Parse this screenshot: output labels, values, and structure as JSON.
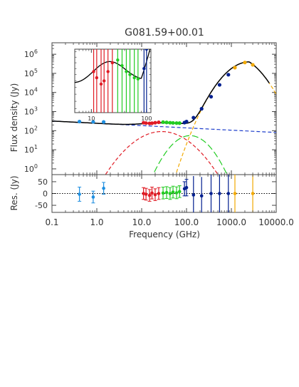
{
  "chart_data": {
    "type": "scatter",
    "title": "G081.59+00.01",
    "xlabel": "Frequency (GHz)",
    "ylabel_top": "Flux density (Jy)",
    "ylabel_bottom": "Res. (Jy)",
    "x_scale": "log",
    "xlim": [
      0.1,
      10000
    ],
    "x_ticks": [
      "0.1",
      "1.0",
      "10.0",
      "100.0",
      "1000.0",
      "10000.0"
    ],
    "top_panel": {
      "y_scale": "log",
      "ylim": [
        0.5,
        4000000
      ],
      "y_ticks": [
        "10^0",
        "10^1",
        "10^2",
        "10^3",
        "10^4",
        "10^5",
        "10^6"
      ],
      "series": [
        {
          "color": "#1f8fe0",
          "x": [
            0.41,
            0.83,
            1.42
          ],
          "y": [
            300,
            290,
            285
          ]
        },
        {
          "color": "#e01b24",
          "x": [
            11,
            12.5,
            15,
            17,
            20,
            24
          ],
          "y": [
            260,
            250,
            240,
            245,
            260,
            275
          ]
        },
        {
          "color": "#22cc22",
          "x": [
            30,
            36,
            43,
            50,
            60,
            70
          ],
          "y": [
            280,
            270,
            260,
            255,
            250,
            248
          ]
        },
        {
          "color": "#001f8f",
          "x": [
            90,
            100,
            143,
            217,
            353,
            545,
            857
          ],
          "y": [
            265,
            300,
            480,
            1400,
            6000,
            25000,
            85000
          ]
        },
        {
          "color": "#f2a900",
          "x": [
            1200,
            2000,
            3000
          ],
          "y": [
            200000,
            370000,
            280000
          ]
        }
      ],
      "model_curves": [
        {
          "component": "total",
          "color": "#000000",
          "style": "solid"
        },
        {
          "component": "free-free",
          "color": "#1f3fcc",
          "style": "dashed"
        },
        {
          "component": "spinning dust (1)",
          "color": "#e01b24",
          "style": "dashed"
        },
        {
          "component": "spinning dust (2)",
          "color": "#22cc22",
          "style": "long-dash"
        },
        {
          "component": "thermal dust",
          "color": "#f2a900",
          "style": "dashed"
        }
      ]
    },
    "inset": {
      "x_ticks": [
        "10",
        "100"
      ],
      "y_scale": "log"
    },
    "bottom_panel": {
      "ylim": [
        -80,
        80
      ],
      "y_ticks": [
        "50",
        "0",
        "-50"
      ],
      "residuals": [
        {
          "color": "#1f8fe0",
          "x": [
            0.41,
            0.83,
            1.42
          ],
          "y": [
            -3,
            -15,
            22
          ],
          "err": [
            30,
            25,
            25
          ]
        },
        {
          "color": "#e01b24",
          "x": [
            11,
            12.5,
            15,
            17,
            20,
            24
          ],
          "y": [
            0,
            -3,
            -8,
            2,
            -5,
            0
          ],
          "err": [
            25,
            25,
            25,
            25,
            25,
            25
          ]
        },
        {
          "color": "#22cc22",
          "x": [
            30,
            36,
            43,
            50,
            60,
            70
          ],
          "y": [
            2,
            4,
            0,
            6,
            3,
            8
          ],
          "err": [
            25,
            25,
            25,
            25,
            25,
            25
          ]
        },
        {
          "color": "#001f8f",
          "x": [
            90,
            100,
            143,
            217,
            353,
            545,
            857
          ],
          "y": [
            20,
            25,
            -6,
            -10,
            0,
            0,
            0
          ],
          "err": [
            30,
            35,
            80,
            80,
            80,
            80,
            80
          ]
        },
        {
          "color": "#f2a900",
          "x": [
            1200,
            3000
          ],
          "y": [
            0,
            0
          ],
          "err": [
            80,
            80
          ]
        }
      ]
    }
  }
}
